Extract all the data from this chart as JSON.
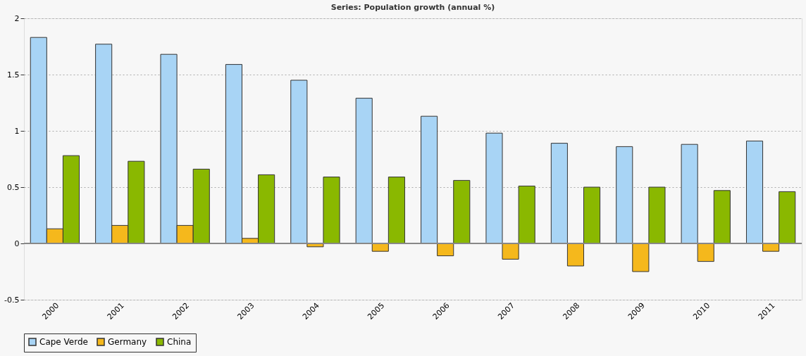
{
  "chart_data": {
    "type": "bar",
    "title": "Series: Population growth (annual %)",
    "categories": [
      "2000",
      "2001",
      "2002",
      "2003",
      "2004",
      "2005",
      "2006",
      "2007",
      "2008",
      "2009",
      "2010",
      "2011"
    ],
    "series": [
      {
        "name": "Cape Verde",
        "color": "#a8d4f5",
        "values": [
          1.83,
          1.77,
          1.68,
          1.59,
          1.45,
          1.29,
          1.13,
          0.98,
          0.89,
          0.86,
          0.88,
          0.91
        ]
      },
      {
        "name": "Germany",
        "color": "#f5b81c",
        "values": [
          0.13,
          0.16,
          0.16,
          0.045,
          -0.03,
          -0.07,
          -0.11,
          -0.14,
          -0.2,
          -0.25,
          -0.16,
          -0.07
        ]
      },
      {
        "name": "China",
        "color": "#8ab800",
        "values": [
          0.78,
          0.73,
          0.66,
          0.61,
          0.59,
          0.59,
          0.56,
          0.51,
          0.5,
          0.5,
          0.47,
          0.46
        ]
      }
    ],
    "ylim": [
      -0.5,
      2
    ],
    "yticks": [
      -0.5,
      0,
      0.5,
      1,
      1.5,
      2
    ],
    "grid": "y",
    "legend": "bottom"
  }
}
